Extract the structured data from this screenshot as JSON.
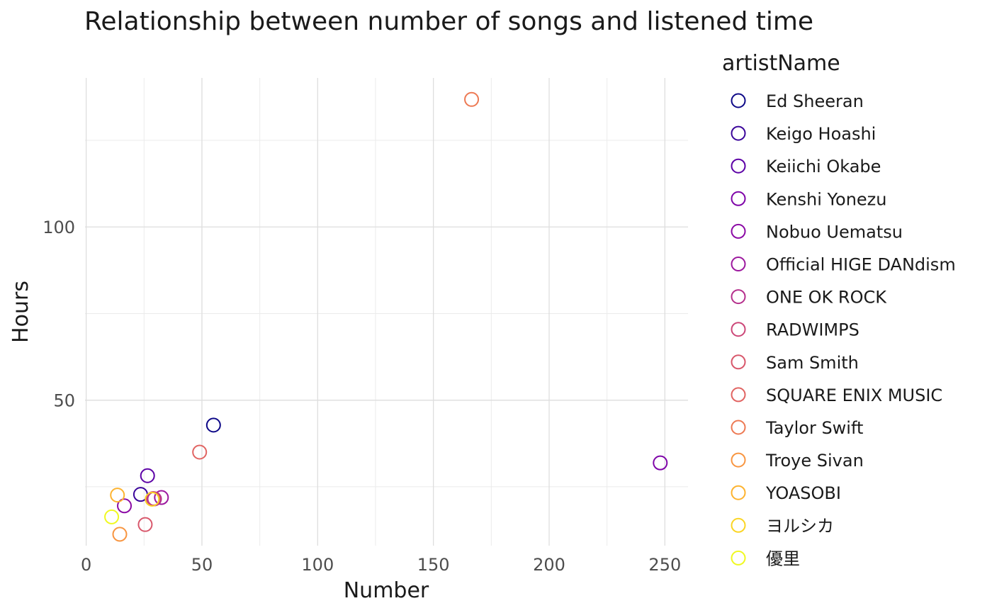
{
  "chart_data": {
    "type": "scatter",
    "title": "Relationship between number of songs and listened time",
    "xlabel": "Number",
    "ylabel": "Hours",
    "xlim": [
      -0.5,
      260
    ],
    "ylim": [
      8,
      143
    ],
    "x_ticks": [
      0,
      50,
      100,
      150,
      200,
      250
    ],
    "x_tick_labels": [
      "0",
      "50",
      "100",
      "150",
      "200",
      "250"
    ],
    "y_ticks": [
      50,
      100
    ],
    "y_tick_labels": [
      "50",
      "100"
    ],
    "grid": true,
    "legend": {
      "title": "artistName",
      "position": "right"
    },
    "marker": "open-circle",
    "series": [
      {
        "name": "Ed Sheeran",
        "color": "#0D0887",
        "x": 55,
        "y": 42.8
      },
      {
        "name": "Keigo Hoashi",
        "color": "#3A049A",
        "x": 23.5,
        "y": 22.8
      },
      {
        "name": "Keiichi Okabe",
        "color": "#5C01A6",
        "x": 26.5,
        "y": 28.2
      },
      {
        "name": "Kenshi Yonezu",
        "color": "#7E03A8",
        "x": 248,
        "y": 31.9
      },
      {
        "name": "Nobuo Uematsu",
        "color": "#8B0AA5",
        "x": 16.5,
        "y": 19.5
      },
      {
        "name": "Official HIGE DANdism",
        "color": "#9C179E",
        "x": 32.5,
        "y": 21.9
      },
      {
        "name": "ONE OK ROCK",
        "color": "#B52F8C",
        "x": 29.5,
        "y": 21.5
      },
      {
        "name": "RADWIMPS",
        "color": "#CC4778",
        "x": 29,
        "y": 21.6
      },
      {
        "name": "Sam Smith",
        "color": "#D8576B",
        "x": 25.5,
        "y": 14.1
      },
      {
        "name": "SQUARE ENIX MUSIC",
        "color": "#E16462",
        "x": 49,
        "y": 35
      },
      {
        "name": "Taylor Swift",
        "color": "#ED7953",
        "x": 166.5,
        "y": 136.8
      },
      {
        "name": "Troye Sivan",
        "color": "#F89540",
        "x": 14.5,
        "y": 11.3
      },
      {
        "name": "YOASOBI",
        "color": "#FDB32F",
        "x": 13.5,
        "y": 22.6
      },
      {
        "name": "ヨルシカ",
        "color": "#FBD524",
        "x": 28.5,
        "y": 21.4
      },
      {
        "name": "優里",
        "color": "#F0F921",
        "x": 11,
        "y": 16.3
      }
    ]
  }
}
